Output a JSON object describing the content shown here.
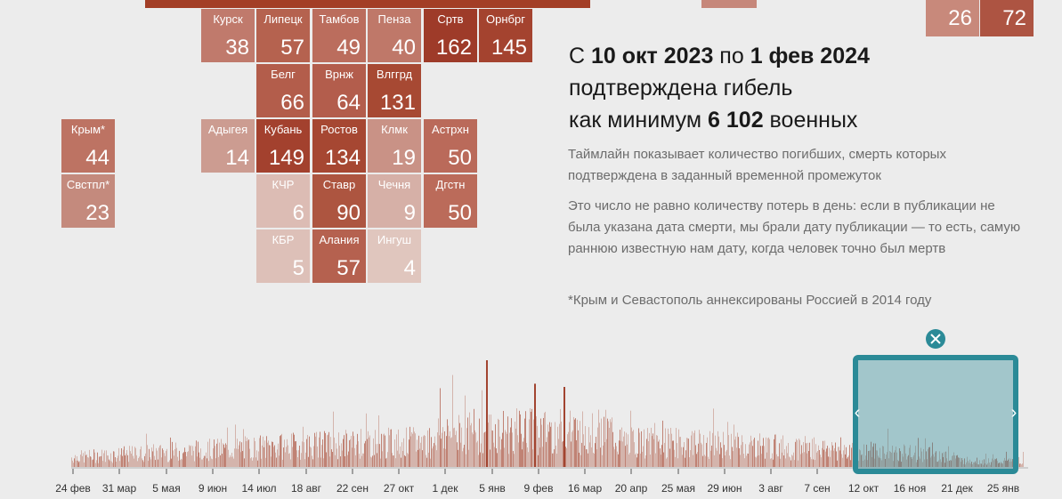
{
  "tiles": [
    {
      "id": "kursk",
      "name": "Курск",
      "value": "38",
      "color": "#c07a6c"
    },
    {
      "id": "lipetsk",
      "name": "Липецк",
      "value": "57",
      "color": "#b5624f"
    },
    {
      "id": "tambov",
      "name": "Тамбов",
      "value": "49",
      "color": "#bb6d5d"
    },
    {
      "id": "penza",
      "name": "Пенза",
      "value": "40",
      "color": "#bf7869"
    },
    {
      "id": "saratov",
      "name": "Сртв",
      "value": "162",
      "color": "#9e3b29"
    },
    {
      "id": "orenburg",
      "name": "Орнбрг",
      "value": "145",
      "color": "#a4432f"
    },
    {
      "id": "belgorod",
      "name": "Белг",
      "value": "66",
      "color": "#b35d4b"
    },
    {
      "id": "voronezh",
      "name": "Врнж",
      "value": "64",
      "color": "#b35d4c"
    },
    {
      "id": "volgograd",
      "name": "Влггрд",
      "value": "131",
      "color": "#a74933"
    },
    {
      "id": "crimea",
      "name": "Крым*",
      "value": "44",
      "color": "#bd7363"
    },
    {
      "id": "adygea",
      "name": "Адыгея",
      "value": "14",
      "color": "#cc9c91"
    },
    {
      "id": "kuban",
      "name": "Кубань",
      "value": "149",
      "color": "#a3412e"
    },
    {
      "id": "rostov",
      "name": "Ростов",
      "value": "134",
      "color": "#a64732"
    },
    {
      "id": "kalmykia",
      "name": "Клмк",
      "value": "19",
      "color": "#c99286"
    },
    {
      "id": "astrakhan",
      "name": "Астрхн",
      "value": "50",
      "color": "#ba6a5a"
    },
    {
      "id": "sevastopol",
      "name": "Свстпл*",
      "value": "23",
      "color": "#c48a7d"
    },
    {
      "id": "kchr",
      "name": "КЧР",
      "value": "6",
      "color": "#dcbcb4"
    },
    {
      "id": "stavropol",
      "name": "Ставр",
      "value": "90",
      "color": "#ad5540"
    },
    {
      "id": "chechnya",
      "name": "Чечня",
      "value": "9",
      "color": "#d6b0a7"
    },
    {
      "id": "dagestan",
      "name": "Дгстн",
      "value": "50",
      "color": "#bb6b5a"
    },
    {
      "id": "kbr",
      "name": "КБР",
      "value": "5",
      "color": "#ddc0b8"
    },
    {
      "id": "alania",
      "name": "Алания",
      "value": "57",
      "color": "#b5614f"
    },
    {
      "id": "ingush",
      "name": "Ингуш",
      "value": "4",
      "color": "#e0c6be"
    }
  ],
  "top_right_values": {
    "first": "26",
    "second": "72",
    "first_color": "#c8897b",
    "second_color": "#ad5442"
  },
  "top_bar_colors": {
    "dark": "#a33e26",
    "light": "#c6877a"
  },
  "headline": {
    "prefix": "С ",
    "from": "10 окт 2023",
    "mid": " по ",
    "to": "1 фев 2024",
    "line2": "подтверждена гибель",
    "line3_prefix": "как минимум ",
    "count": "6 102",
    "line3_suffix": " военных"
  },
  "notes": {
    "p1": "Таймлайн показывает количество погибших, смерть которых подтверждена в заданный временной промежуток",
    "p2": "Это число не равно количеству потерь в день: если в публикации не была указана дата смерти, мы брали дату публикации — то есть, самую раннюю известную нам дату, когда человек точно был мертв",
    "p3": "*Крым и Севастополь аннексированы Россией в 2014 году"
  },
  "timeline": {
    "axis_labels": [
      "24 фев",
      "31 мар",
      "5 мая",
      "9 июн",
      "14 июл",
      "18 авг",
      "22 сен",
      "27 окт",
      "1 дек",
      "5 янв",
      "9 фев",
      "16 мар",
      "20 апр",
      "25 мая",
      "29 июн",
      "3 авг",
      "7 сен",
      "12 окт",
      "16 ноя",
      "21 дек",
      "25 янв"
    ],
    "selection_color": "#2b8a97",
    "bar_color": "#b8705f"
  },
  "chart_data": {
    "type": "bar",
    "title": "",
    "xlabel": "",
    "ylabel": "",
    "x_range": [
      "24 фев 2022",
      "1 фев 2024"
    ],
    "selection": {
      "from": "10 окт 2023",
      "to": "1 фев 2024"
    },
    "peaks": [
      {
        "date": "5 янв 2023",
        "relative_height": 1.0
      },
      {
        "date": "9 фев 2023",
        "relative_height": 0.78
      },
      {
        "date": "16 мар 2023",
        "relative_height": 0.75
      }
    ],
    "categories": [
      "Курск",
      "Липецк",
      "Тамбов",
      "Пенза",
      "Сртв",
      "Орнбрг",
      "Белг",
      "Врнж",
      "Влггрд",
      "Крым*",
      "Адыгея",
      "Кубань",
      "Ростов",
      "Клмк",
      "Астрхн",
      "Свстпл*",
      "КЧР",
      "Ставр",
      "Чечня",
      "Дгстн",
      "КБР",
      "Алания",
      "Ингуш"
    ],
    "values": [
      38,
      57,
      49,
      40,
      162,
      145,
      66,
      64,
      131,
      44,
      14,
      149,
      134,
      19,
      50,
      23,
      6,
      90,
      9,
      50,
      5,
      57,
      4
    ]
  }
}
